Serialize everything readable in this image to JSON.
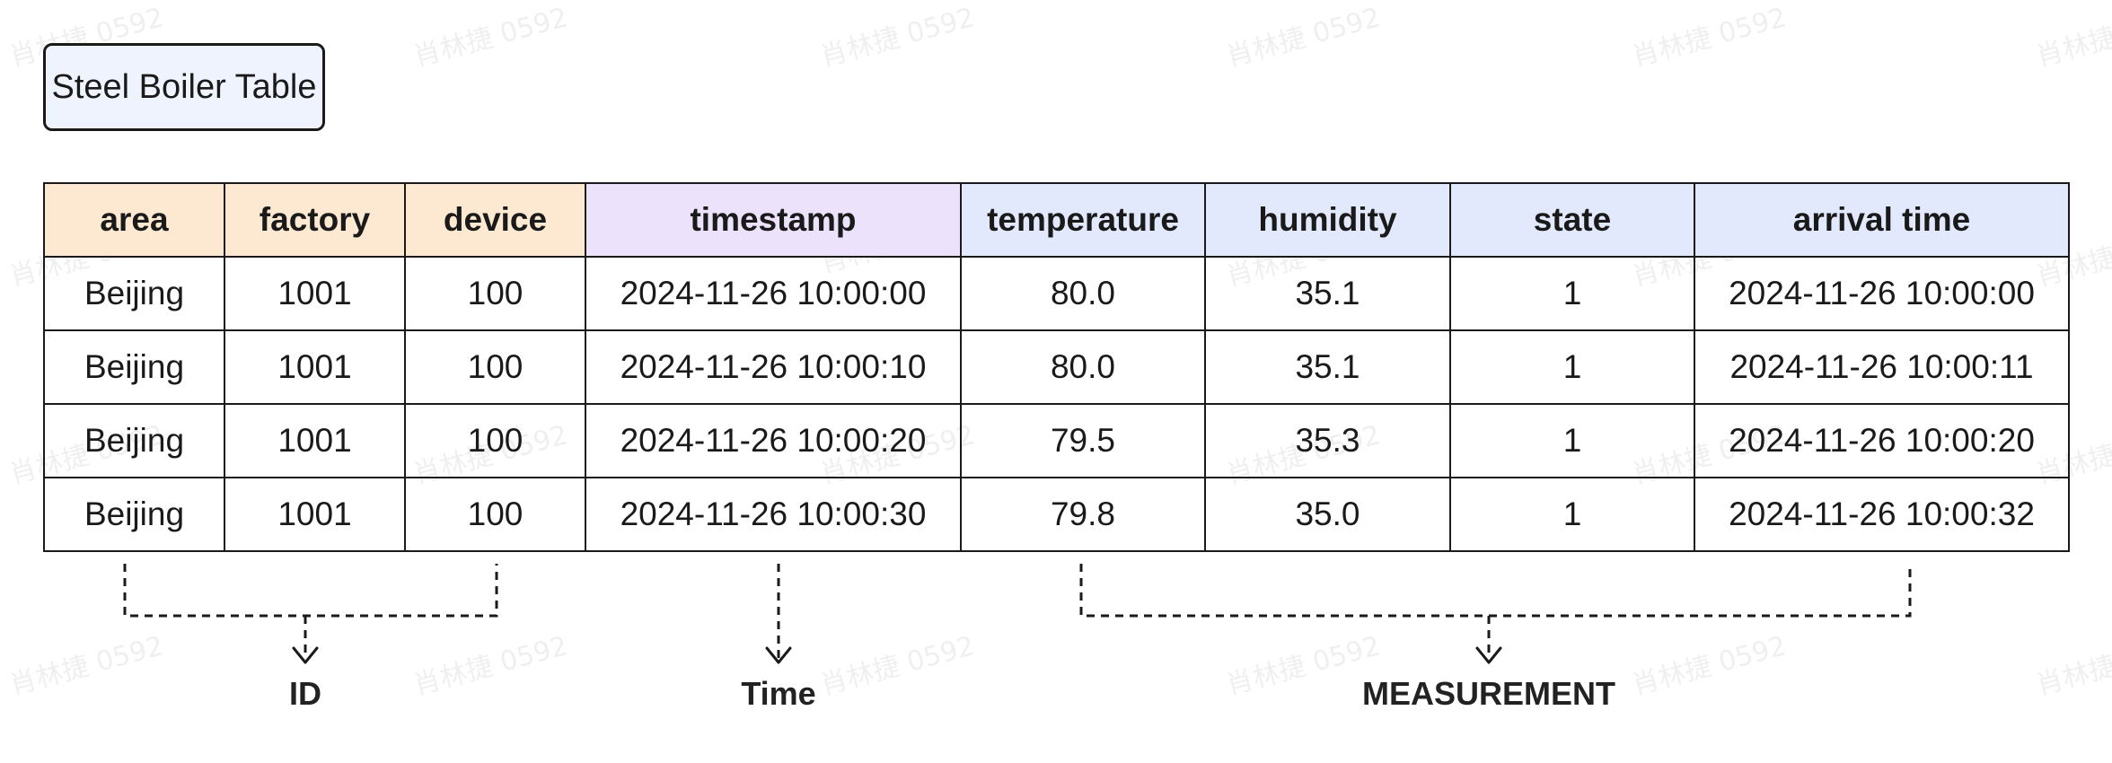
{
  "watermark": "肖林捷 0592",
  "title": "Steel Boiler Table",
  "table": {
    "columns": [
      {
        "label": "area",
        "group": "id"
      },
      {
        "label": "factory",
        "group": "id"
      },
      {
        "label": "device",
        "group": "id"
      },
      {
        "label": "timestamp",
        "group": "time"
      },
      {
        "label": "temperature",
        "group": "measurement"
      },
      {
        "label": "humidity",
        "group": "measurement"
      },
      {
        "label": "state",
        "group": "measurement"
      },
      {
        "label": "arrival time",
        "group": "measurement"
      }
    ],
    "rows": [
      [
        "Beijing",
        "1001",
        "100",
        "2024-11-26 10:00:00",
        "80.0",
        "35.1",
        "1",
        "2024-11-26 10:00:00"
      ],
      [
        "Beijing",
        "1001",
        "100",
        "2024-11-26 10:00:10",
        "80.0",
        "35.1",
        "1",
        "2024-11-26 10:00:11"
      ],
      [
        "Beijing",
        "1001",
        "100",
        "2024-11-26 10:00:20",
        "79.5",
        "35.3",
        "1",
        "2024-11-26 10:00:20"
      ],
      [
        "Beijing",
        "1001",
        "100",
        "2024-11-26 10:00:30",
        "79.8",
        "35.0",
        "1",
        "2024-11-26 10:00:32"
      ]
    ]
  },
  "groups": {
    "id_label": "ID",
    "time_label": "Time",
    "measurement_label": "MEASUREMENT"
  },
  "colors": {
    "id_header": "#fde9d2",
    "time_header": "#ece2fb",
    "measurement_header": "#e2e9fd",
    "title_bg": "#eef3fd"
  }
}
